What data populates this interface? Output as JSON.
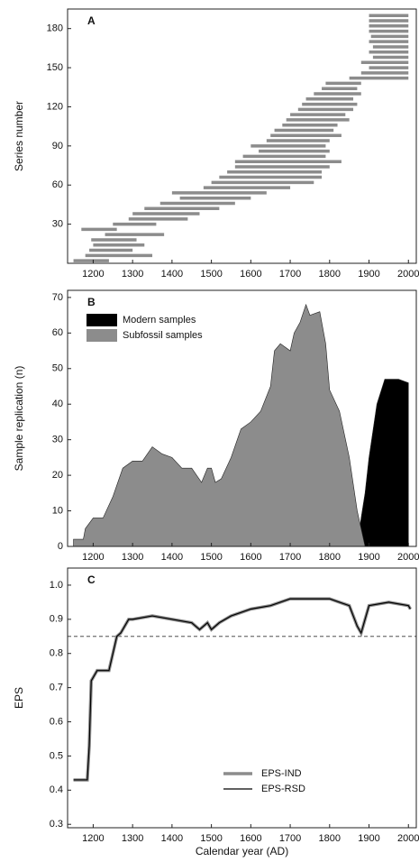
{
  "chart_data": [
    {
      "type": "range",
      "panel": "A",
      "ylabel": "Series number",
      "color": "#8c8c8c",
      "xlim": [
        1135,
        2020
      ],
      "xticks": [
        1200,
        1300,
        1400,
        1500,
        1600,
        1700,
        1800,
        1900,
        2000
      ],
      "ylim": [
        0,
        195
      ],
      "yticks": [
        30,
        60,
        90,
        120,
        150,
        180
      ],
      "y": [
        2,
        6,
        10,
        14,
        18,
        22,
        26,
        30,
        34,
        38,
        42,
        46,
        50,
        54,
        58,
        62,
        66,
        70,
        74,
        78,
        82,
        86,
        90,
        94,
        98,
        102,
        106,
        110,
        114,
        118,
        122,
        126,
        130,
        134,
        138,
        142,
        146,
        150,
        154,
        158,
        162,
        166,
        170,
        174,
        178,
        182,
        186,
        190
      ],
      "start": [
        1150,
        1180,
        1190,
        1200,
        1195,
        1230,
        1170,
        1250,
        1290,
        1300,
        1330,
        1370,
        1420,
        1400,
        1480,
        1500,
        1520,
        1540,
        1560,
        1560,
        1580,
        1620,
        1600,
        1640,
        1650,
        1660,
        1680,
        1690,
        1700,
        1720,
        1730,
        1740,
        1760,
        1780,
        1790,
        1850,
        1880,
        1900,
        1880,
        1910,
        1900,
        1910,
        1900,
        1905,
        1900,
        1900,
        1900,
        1900
      ],
      "end": [
        1240,
        1350,
        1300,
        1330,
        1310,
        1380,
        1260,
        1360,
        1440,
        1470,
        1520,
        1560,
        1600,
        1640,
        1700,
        1760,
        1780,
        1780,
        1800,
        1830,
        1790,
        1800,
        1790,
        1800,
        1830,
        1810,
        1820,
        1850,
        1840,
        1860,
        1870,
        1860,
        1880,
        1870,
        1880,
        2000,
        2000,
        2000,
        2000,
        2000,
        2000,
        2000,
        2000,
        2000,
        2000,
        2000,
        2000,
        2000
      ]
    },
    {
      "type": "area",
      "panel": "B",
      "ylabel": "Sample replication (n)",
      "xlim": [
        1135,
        2020
      ],
      "xticks": [
        1200,
        1300,
        1400,
        1500,
        1600,
        1700,
        1800,
        1900,
        2000
      ],
      "ylim": [
        0,
        72
      ],
      "yticks": [
        0,
        10,
        20,
        30,
        40,
        50,
        60,
        70
      ],
      "series": [
        {
          "name": "Modern samples",
          "color": "#000000",
          "x": [
            1870,
            1880,
            1890,
            1900,
            1920,
            1940,
            1975,
            2000
          ],
          "values": [
            0,
            8,
            15,
            25,
            40,
            47,
            47,
            46
          ]
        },
        {
          "name": "Subfossil samples",
          "color": "#8c8c8c",
          "x": [
            1150,
            1175,
            1180,
            1200,
            1225,
            1250,
            1275,
            1300,
            1325,
            1350,
            1375,
            1400,
            1425,
            1450,
            1475,
            1490,
            1500,
            1510,
            1525,
            1550,
            1575,
            1600,
            1625,
            1650,
            1660,
            1675,
            1700,
            1710,
            1725,
            1740,
            1750,
            1775,
            1790,
            1800,
            1825,
            1850,
            1870,
            1890
          ],
          "values": [
            2,
            2,
            5,
            8,
            8,
            14,
            22,
            24,
            24,
            28,
            26,
            25,
            22,
            22,
            18,
            22,
            22,
            18,
            19,
            25,
            33,
            35,
            38,
            45,
            55,
            57,
            55,
            60,
            63,
            68,
            65,
            66,
            57,
            44,
            38,
            25,
            10,
            0
          ]
        }
      ]
    },
    {
      "type": "line",
      "panel": "C",
      "ylabel": "EPS",
      "xlabel": "Calendar year (AD)",
      "xlim": [
        1135,
        2020
      ],
      "xticks": [
        1200,
        1300,
        1400,
        1500,
        1600,
        1700,
        1800,
        1900,
        2000
      ],
      "ylim": [
        0.29,
        1.05
      ],
      "yticks": [
        0.3,
        0.4,
        0.5,
        0.6,
        0.7,
        0.8,
        0.9,
        {
          "value": 1,
          "label": "1.0"
        }
      ],
      "threshold": 0.85,
      "x": [
        1150,
        1185,
        1190,
        1195,
        1200,
        1210,
        1240,
        1250,
        1260,
        1270,
        1290,
        1300,
        1350,
        1400,
        1450,
        1470,
        1490,
        1500,
        1520,
        1550,
        1600,
        1650,
        1700,
        1750,
        1800,
        1850,
        1870,
        1880,
        1890,
        1900,
        1950,
        2000,
        2005
      ],
      "series": [
        {
          "name": "EPS-IND",
          "color": "#8c8c8c",
          "values": [
            0.43,
            0.43,
            0.53,
            0.72,
            0.73,
            0.75,
            0.75,
            0.8,
            0.85,
            0.86,
            0.9,
            0.9,
            0.91,
            0.9,
            0.89,
            0.87,
            0.89,
            0.87,
            0.89,
            0.91,
            0.93,
            0.94,
            0.96,
            0.96,
            0.96,
            0.94,
            0.88,
            0.86,
            0.9,
            0.94,
            0.95,
            0.94,
            0.93
          ]
        },
        {
          "name": "EPS-RSD",
          "color": "#000000",
          "values": [
            0.43,
            0.43,
            0.53,
            0.72,
            0.73,
            0.75,
            0.75,
            0.8,
            0.85,
            0.86,
            0.9,
            0.9,
            0.91,
            0.9,
            0.89,
            0.87,
            0.89,
            0.87,
            0.89,
            0.91,
            0.93,
            0.94,
            0.96,
            0.96,
            0.96,
            0.94,
            0.88,
            0.86,
            0.9,
            0.94,
            0.95,
            0.94,
            0.93
          ]
        }
      ]
    }
  ]
}
